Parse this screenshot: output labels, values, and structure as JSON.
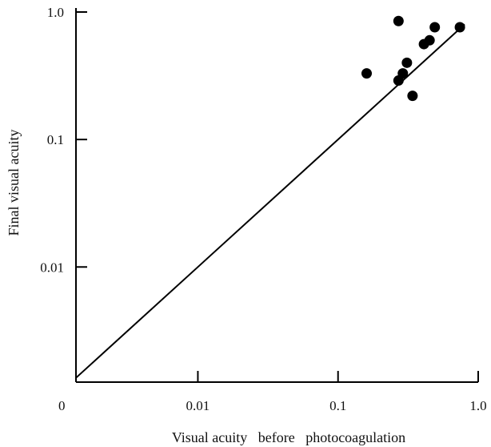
{
  "chart_data": {
    "type": "scatter",
    "title": "",
    "xlabel": "Visual acuity   before   photocoagulation",
    "ylabel": "Final visual acuity",
    "x_scale": "log",
    "y_scale": "log",
    "xlim": [
      0.00135,
      1.0
    ],
    "ylim": [
      0.00125,
      1.0
    ],
    "grid": false,
    "legend": "none",
    "origin_label": "0",
    "x_ticks": [
      {
        "value": 0.01,
        "label": "0.01"
      },
      {
        "value": 0.1,
        "label": "0.1"
      },
      {
        "value": 1.0,
        "label": "1.0"
      }
    ],
    "y_ticks": [
      {
        "value": 0.01,
        "label": "0.01"
      },
      {
        "value": 0.1,
        "label": "0.1"
      },
      {
        "value": 1.0,
        "label": "1.0"
      }
    ],
    "reference_line": {
      "type": "identity",
      "x": [
        0.00135,
        0.8
      ],
      "y": [
        0.00135,
        0.8
      ]
    },
    "series": [
      {
        "points": [
          {
            "x": 0.16,
            "y": 0.33
          },
          {
            "x": 0.27,
            "y": 0.85
          },
          {
            "x": 0.27,
            "y": 0.29
          },
          {
            "x": 0.29,
            "y": 0.33
          },
          {
            "x": 0.31,
            "y": 0.4
          },
          {
            "x": 0.34,
            "y": 0.22
          },
          {
            "x": 0.41,
            "y": 0.56
          },
          {
            "x": 0.45,
            "y": 0.6
          },
          {
            "x": 0.49,
            "y": 0.76
          },
          {
            "x": 0.74,
            "y": 0.76
          }
        ]
      }
    ]
  },
  "colors": {
    "ink": "#000000",
    "background": "#ffffff"
  }
}
